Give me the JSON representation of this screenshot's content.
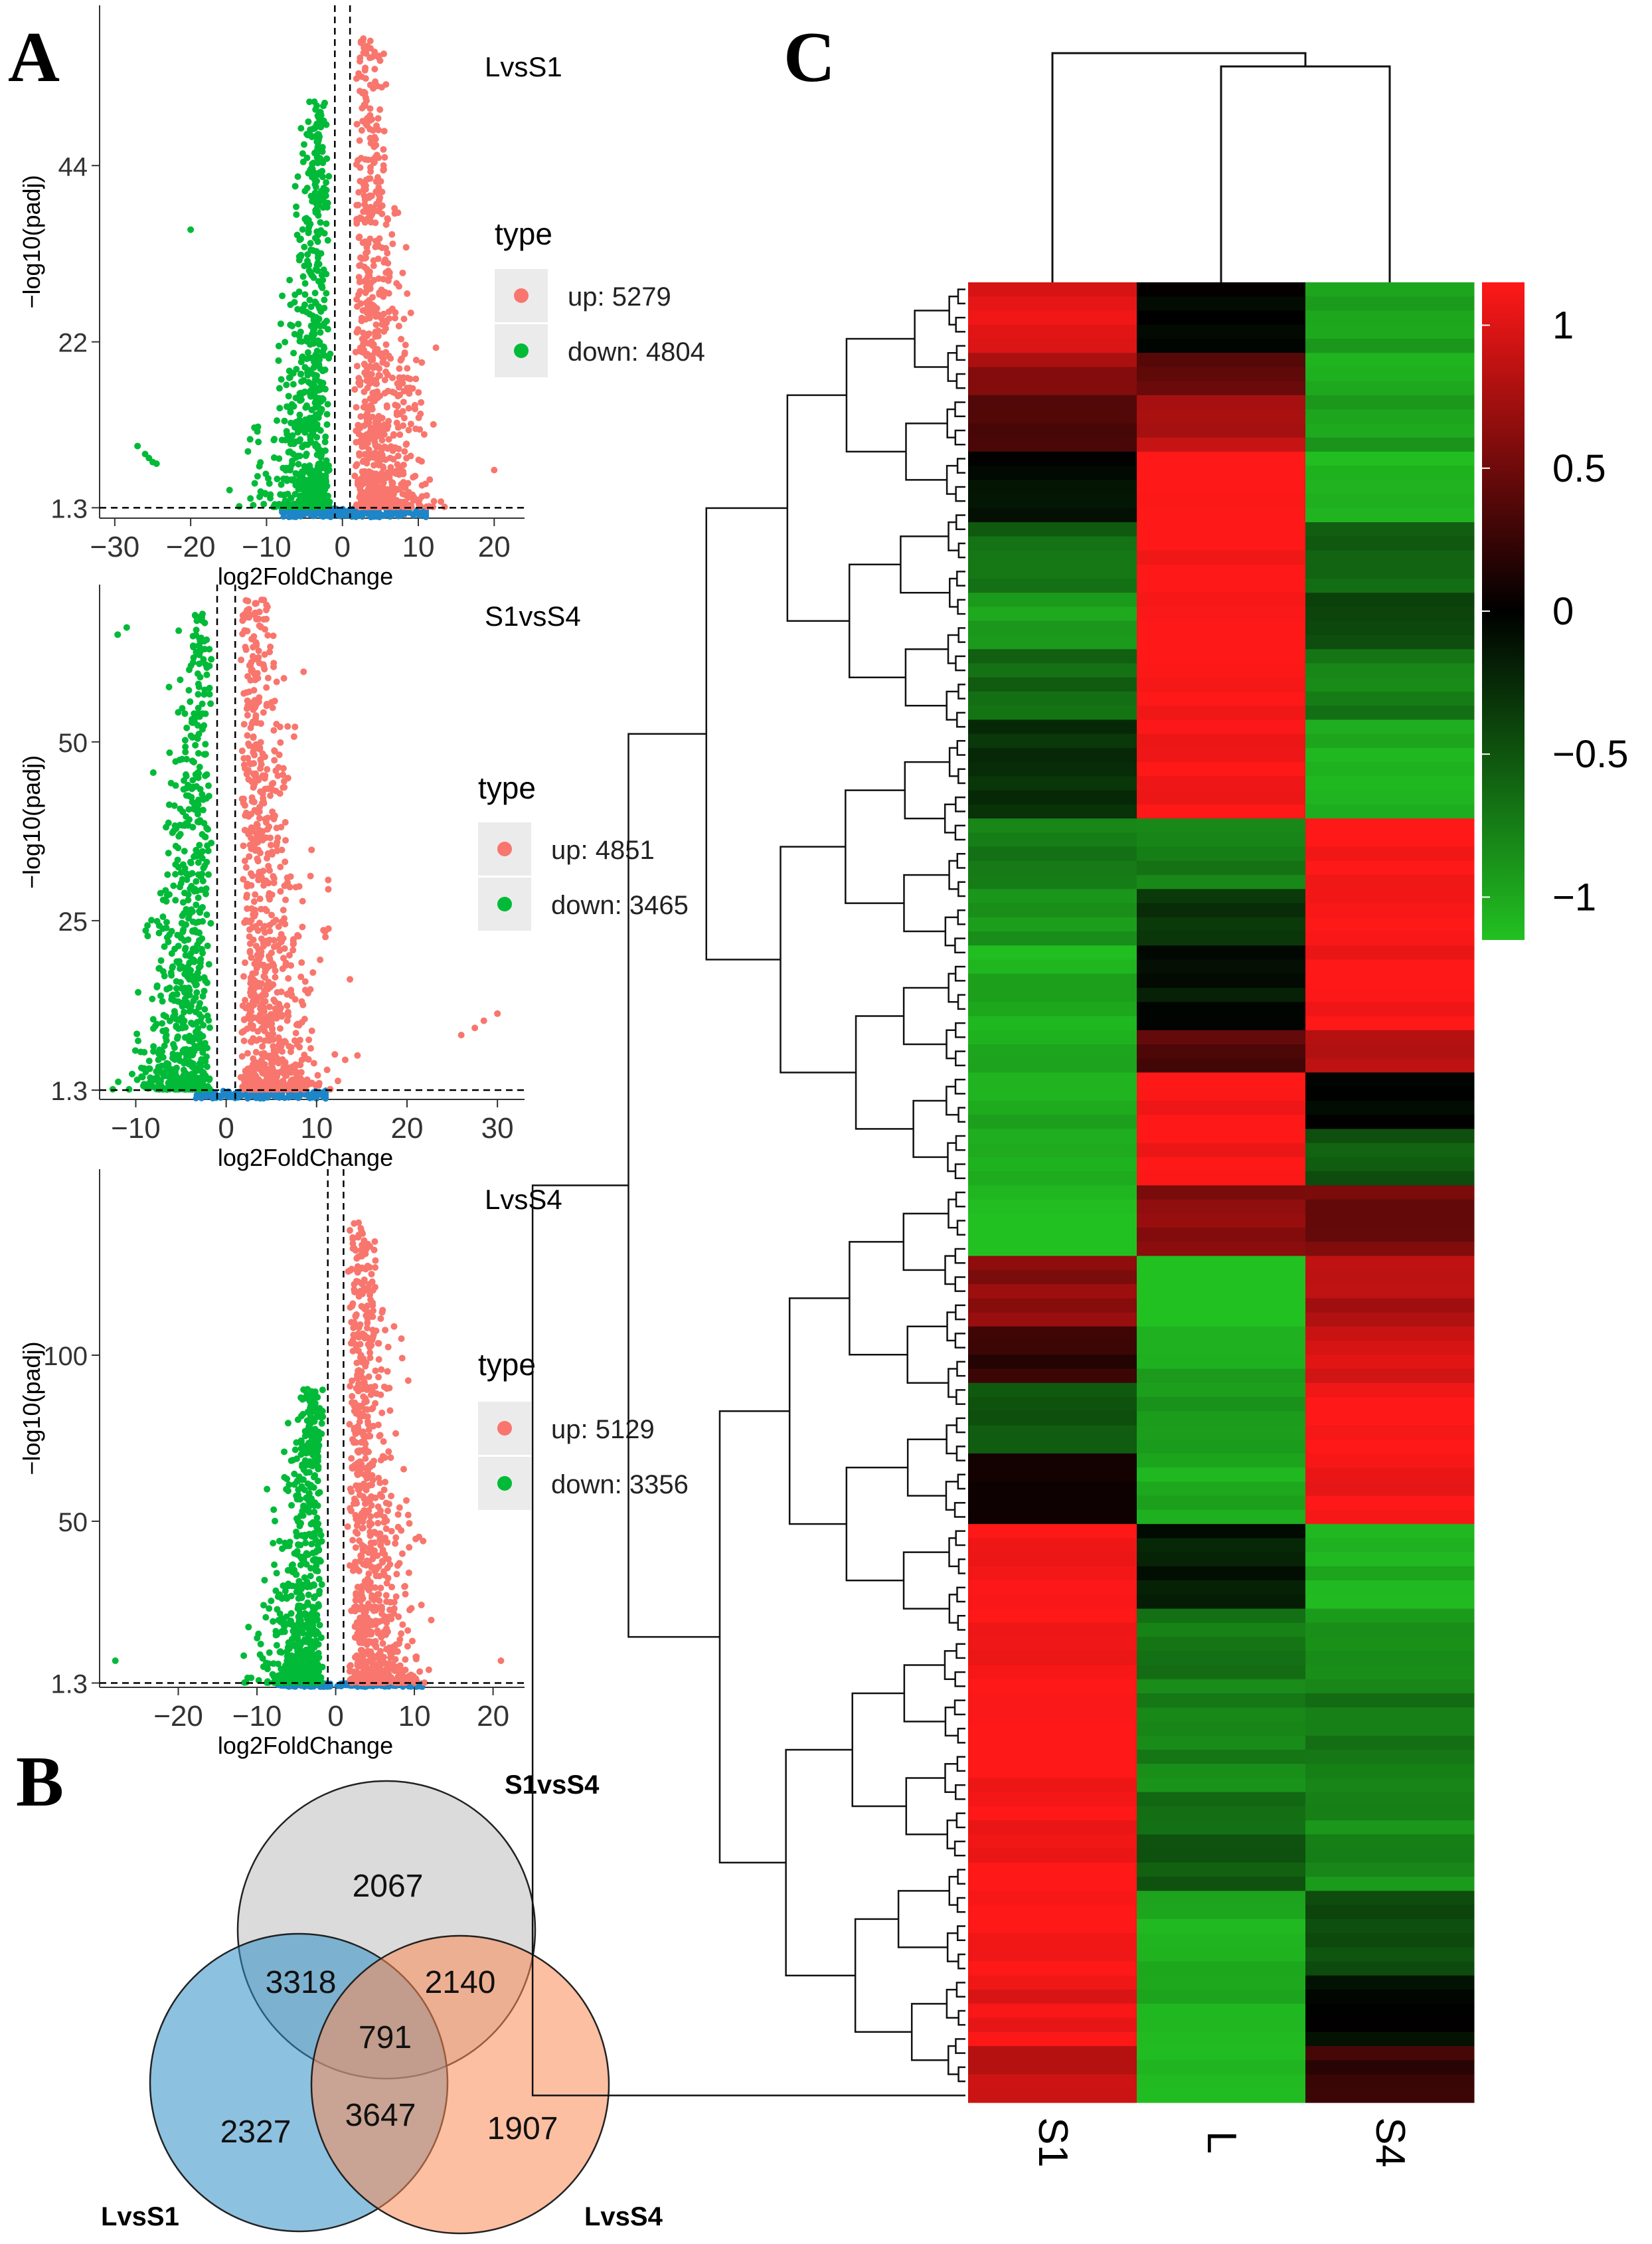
{
  "figure": {
    "panel_labels": [
      "A",
      "B",
      "C"
    ]
  },
  "colors": {
    "up": "#F8766D",
    "down": "#00BA38",
    "nonsig": "#1C86C8",
    "venn_s1vss4": "#bdbdbd",
    "venn_lvss1": "#2f8ec6",
    "venn_lvss4": "#fb8a54",
    "heat_low": "#22c122",
    "heat_mid": "#000000",
    "heat_high": "#ff1818"
  },
  "chart_data": [
    {
      "type": "scatter",
      "id": "volcano_LvsS1",
      "title": "LvsS1",
      "xlabel": "log2FoldChange",
      "ylabel": "−log10(padj)",
      "xlim": [
        -32,
        24
      ],
      "ylim": [
        0,
        64
      ],
      "xticks": [
        "−30",
        "−20",
        "−10",
        "0",
        "10",
        "20"
      ],
      "xtick_values": [
        -30,
        -20,
        -10,
        0,
        10,
        20
      ],
      "yticks": [
        "1.3",
        "22",
        "44"
      ],
      "ytick_values": [
        1.3,
        22,
        44
      ],
      "threshold_y": 1.3,
      "threshold_x": [
        -1,
        1
      ],
      "legend_title": "type",
      "legend": [
        {
          "label": "up: 5279",
          "key": "up"
        },
        {
          "label": "down: 4804",
          "key": "down"
        }
      ],
      "series": [
        {
          "name": "up",
          "count": 5279
        },
        {
          "name": "down",
          "count": 4804
        }
      ]
    },
    {
      "type": "scatter",
      "id": "volcano_S1vsS4",
      "title": "S1vsS4",
      "xlabel": "log2FoldChange",
      "ylabel": "−log10(padj)",
      "xlim": [
        -14,
        33
      ],
      "ylim": [
        0,
        72
      ],
      "xticks": [
        "−10",
        "0",
        "10",
        "20",
        "30"
      ],
      "xtick_values": [
        -10,
        0,
        10,
        20,
        30
      ],
      "yticks": [
        "1.3",
        "25",
        "50"
      ],
      "ytick_values": [
        1.3,
        25,
        50
      ],
      "threshold_y": 1.3,
      "threshold_x": [
        -1,
        1
      ],
      "legend_title": "type",
      "legend": [
        {
          "label": "up: 4851",
          "key": "up"
        },
        {
          "label": "down: 3465",
          "key": "down"
        }
      ],
      "series": [
        {
          "name": "up",
          "count": 4851
        },
        {
          "name": "down",
          "count": 3465
        }
      ]
    },
    {
      "type": "scatter",
      "id": "volcano_LvsS4",
      "title": "LvsS4",
      "xlabel": "log2FoldChange",
      "ylabel": "−log10(padj)",
      "xlim": [
        -30,
        24
      ],
      "ylim": [
        0,
        156
      ],
      "xticks": [
        "−20",
        "−10",
        "0",
        "10",
        "20"
      ],
      "xtick_values": [
        -20,
        -10,
        0,
        10,
        20
      ],
      "yticks": [
        "1.3",
        "50",
        "100"
      ],
      "ytick_values": [
        1.3,
        50,
        100
      ],
      "threshold_y": 1.3,
      "threshold_x": [
        -1,
        1
      ],
      "legend_title": "type",
      "legend": [
        {
          "label": "up: 5129",
          "key": "up"
        },
        {
          "label": "down: 3356",
          "key": "down"
        }
      ],
      "series": [
        {
          "name": "up",
          "count": 5129
        },
        {
          "name": "down",
          "count": 3356
        }
      ]
    },
    {
      "type": "venn",
      "id": "venn",
      "sets": [
        "S1vsS4",
        "LvsS1",
        "LvsS4"
      ],
      "regions": [
        {
          "sets": [
            "S1vsS4"
          ],
          "value": 2067
        },
        {
          "sets": [
            "LvsS1"
          ],
          "value": 2327
        },
        {
          "sets": [
            "LvsS4"
          ],
          "value": 1907
        },
        {
          "sets": [
            "S1vsS4",
            "LvsS1"
          ],
          "value": 3318
        },
        {
          "sets": [
            "S1vsS4",
            "LvsS4"
          ],
          "value": 2140
        },
        {
          "sets": [
            "LvsS1",
            "LvsS4"
          ],
          "value": 3647
        },
        {
          "sets": [
            "S1vsS4",
            "LvsS1",
            "LvsS4"
          ],
          "value": 791
        }
      ]
    },
    {
      "type": "heatmap",
      "id": "heatmap",
      "columns": [
        "S1",
        "L",
        "S4"
      ],
      "color_scale": {
        "ticks": [
          "1",
          "0.5",
          "0",
          "−0.5",
          "−1"
        ],
        "tick_values": [
          1,
          0.5,
          0,
          -0.5,
          -1
        ],
        "range": [
          -1.15,
          1.15
        ]
      },
      "column_dendrogram": "((S1),(L,S4))",
      "blocks": [
        {
          "rows": 5,
          "values": [
            0.95,
            -0.05,
            -0.95
          ]
        },
        {
          "rows": 3,
          "values": [
            0.65,
            0.45,
            -1.0
          ]
        },
        {
          "rows": 4,
          "values": [
            0.3,
            0.8,
            -0.9
          ]
        },
        {
          "rows": 5,
          "values": [
            -0.05,
            1.1,
            -1.0
          ]
        },
        {
          "rows": 5,
          "values": [
            -0.6,
            1.1,
            -0.55
          ]
        },
        {
          "rows": 4,
          "values": [
            -0.9,
            1.1,
            -0.4
          ]
        },
        {
          "rows": 5,
          "values": [
            -0.6,
            1.1,
            -0.7
          ]
        },
        {
          "rows": 7,
          "values": [
            -0.3,
            1.1,
            -1.0
          ]
        },
        {
          "rows": 5,
          "values": [
            -0.7,
            -0.7,
            1.1
          ]
        },
        {
          "rows": 4,
          "values": [
            -0.85,
            -0.3,
            1.1
          ]
        },
        {
          "rows": 6,
          "values": [
            -1.0,
            -0.1,
            1.1
          ]
        },
        {
          "rows": 3,
          "values": [
            -1.0,
            0.35,
            0.8
          ]
        },
        {
          "rows": 4,
          "values": [
            -1.0,
            1.1,
            -0.05
          ]
        },
        {
          "rows": 4,
          "values": [
            -1.0,
            1.1,
            -0.5
          ]
        },
        {
          "rows": 5,
          "values": [
            -1.1,
            0.6,
            0.5
          ]
        },
        {
          "rows": 5,
          "values": [
            0.6,
            -1.1,
            0.75
          ]
        },
        {
          "rows": 4,
          "values": [
            0.2,
            -0.95,
            0.9
          ]
        },
        {
          "rows": 5,
          "values": [
            -0.5,
            -0.9,
            1.1
          ]
        },
        {
          "rows": 5,
          "values": [
            0.05,
            -1.0,
            1.05
          ]
        },
        {
          "rows": 6,
          "values": [
            1.1,
            -0.15,
            -1.0
          ]
        },
        {
          "rows": 5,
          "values": [
            1.1,
            -0.7,
            -0.85
          ]
        },
        {
          "rows": 8,
          "values": [
            1.1,
            -0.75,
            -0.7
          ]
        },
        {
          "rows": 7,
          "values": [
            1.1,
            -0.55,
            -0.8
          ]
        },
        {
          "rows": 6,
          "values": [
            1.1,
            -1.0,
            -0.45
          ]
        },
        {
          "rows": 5,
          "values": [
            1.0,
            -1.0,
            -0.05
          ]
        },
        {
          "rows": 4,
          "values": [
            0.85,
            -1.0,
            0.25
          ]
        }
      ]
    }
  ]
}
